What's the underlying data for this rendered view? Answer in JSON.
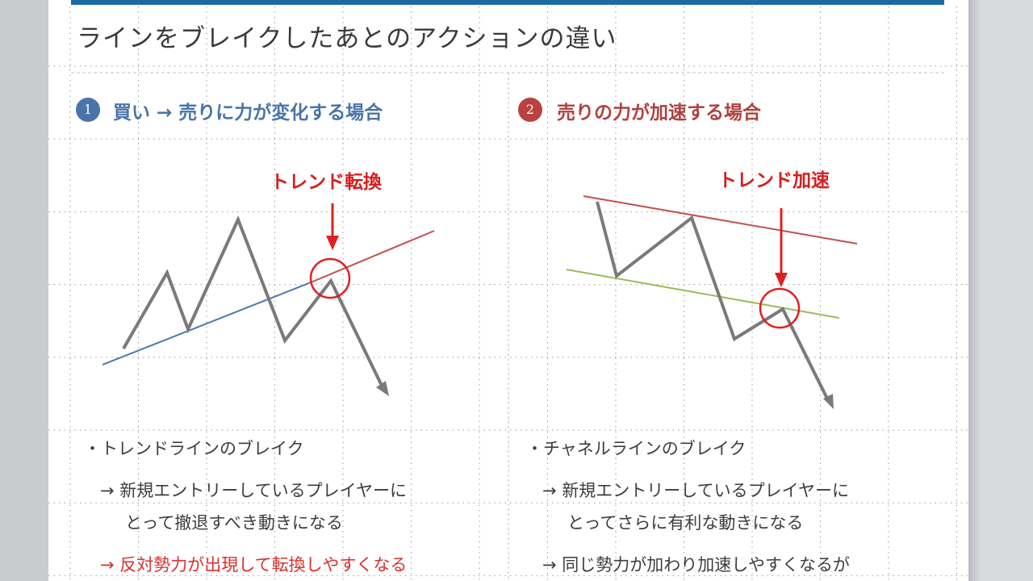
{
  "slide": {
    "title": "ラインをブレイクしたあとのアクションの違い",
    "accent_color": "#1b6aa5",
    "sections": [
      {
        "number": "1",
        "heading": "買い → 売りに力が変化する場合",
        "heading_color": "#4a74a8",
        "callout": "トレンド転換",
        "bullet": "・トレンドラインのブレイク",
        "line1": "→ 新規エントリーしているプレイヤーに",
        "line2": "とって撤退すべき動きになる",
        "line3": "→ 反対勢力が出現して転換しやすくなる"
      },
      {
        "number": "2",
        "heading": "売りの力が加速する場合",
        "heading_color": "#b0413e",
        "callout": "トレンド加速",
        "bullet": "・チャネルラインのブレイク",
        "line1": "→ 新規エントリーしているプレイヤーに",
        "line2": "とってさらに有利な動きになる",
        "line3": "→ 同じ勢力が加わり加速しやすくなるが"
      }
    ]
  }
}
